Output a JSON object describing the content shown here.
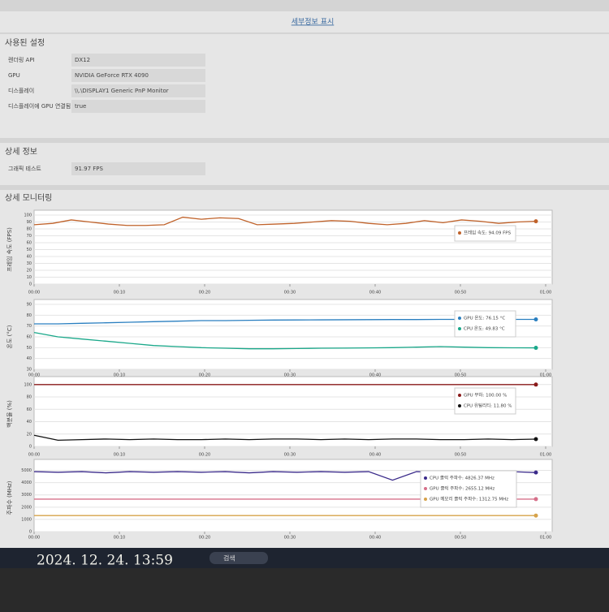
{
  "header": {
    "link": "세부정보 표시"
  },
  "settings": {
    "title": "사용된 설정",
    "rows": [
      [
        "렌더링 API",
        "DX12"
      ],
      [
        "GPU",
        "NVIDIA GeForce RTX 4090"
      ],
      [
        "디스플레이",
        "\\\\.\\DISPLAY1 Generic PnP Monitor"
      ],
      [
        "디스플레이에 GPU 연결됨",
        "true"
      ]
    ]
  },
  "details": {
    "title": "상세 정보",
    "rows": [
      [
        "그래픽 테스트",
        "91.97 FPS"
      ]
    ]
  },
  "monitoring": {
    "title": "상세 모니터링",
    "xticks": [
      "00:00",
      "00:10",
      "00:20",
      "00:30",
      "00:40",
      "00:50",
      "01:00"
    ],
    "charts": [
      {
        "y_label": "프레임 속도 (FPS)",
        "ylim": [
          0,
          100
        ],
        "yticks": [
          0,
          10,
          20,
          30,
          40,
          50,
          60,
          70,
          80,
          90,
          100
        ],
        "series": [
          {
            "label": "프레임 속도: 94.09 FPS",
            "color": "#c0622a",
            "values": [
              86,
              88,
              93,
              90,
              87,
              85,
              85,
              86,
              97,
              94,
              96,
              95,
              86,
              87,
              88,
              90,
              92,
              91,
              88,
              86,
              88,
              92,
              89,
              93,
              91,
              88,
              90,
              91
            ]
          }
        ]
      },
      {
        "y_label": "온도 (°C)",
        "ylim": [
          30,
          90
        ],
        "yticks": [
          30,
          40,
          50,
          60,
          70,
          80,
          90
        ],
        "series": [
          {
            "label": "GPU 온도: 76.15 °C",
            "color": "#2a7fc0",
            "values": [
              72,
              72,
              72.5,
              73,
              73.5,
              74,
              74.5,
              75,
              75,
              75.3,
              75.5,
              75.6,
              75.7,
              75.8,
              75.9,
              76,
              76,
              76.1,
              76.1,
              76.1,
              76.15,
              76.15
            ]
          },
          {
            "label": "CPU 온도: 49.83 °C",
            "color": "#1aa88a",
            "values": [
              64,
              60,
              58,
              56,
              54,
              52,
              51,
              50,
              49.5,
              49,
              49,
              49.2,
              49.5,
              49.6,
              49.8,
              50,
              50.5,
              51,
              50.5,
              50,
              49.9,
              49.83
            ]
          }
        ]
      },
      {
        "y_label": "백분율 (%)",
        "ylim": [
          0,
          105
        ],
        "yticks": [
          0,
          20,
          40,
          60,
          80,
          100
        ],
        "series": [
          {
            "label": "GPU 부하: 100.00 %",
            "color": "#8a1a1a",
            "values": [
              100,
              100,
              100,
              100,
              100,
              100,
              100,
              100,
              100,
              100,
              100,
              100,
              100,
              100,
              100,
              100,
              100,
              100,
              100,
              100
            ]
          },
          {
            "label": "CPU 유틸리티: 11.80 %",
            "color": "#111111",
            "values": [
              18,
              10,
              11,
              12,
              11,
              12,
              11,
              11,
              12,
              11,
              12,
              12,
              11,
              12,
              11,
              12,
              12,
              11,
              11,
              12,
              11,
              11.8
            ]
          }
        ]
      },
      {
        "y_label": "주파수 (MHz)",
        "ylim": [
          0,
          5500
        ],
        "yticks": [
          0,
          1000,
          2000,
          3000,
          4000,
          5000
        ],
        "series": [
          {
            "label": "CPU 클럭 주파수: 4826.37 MHz",
            "color": "#3a2a8a",
            "values": [
              4900,
              4850,
              4900,
              4800,
              4900,
              4850,
              4900,
              4850,
              4900,
              4800,
              4900,
              4850,
              4900,
              4850,
              4900,
              4200,
              4900,
              4850,
              4900,
              4850,
              4900,
              4826.37
            ]
          },
          {
            "label": "GPU 클럭 주파수: 2655.12 MHz",
            "color": "#d6708a",
            "values": [
              2655,
              2655,
              2655,
              2655,
              2655,
              2655,
              2655,
              2655,
              2655,
              2655,
              2655,
              2655,
              2655,
              2655,
              2655,
              2655,
              2655,
              2655,
              2655,
              2655,
              2655,
              2655.12
            ]
          },
          {
            "label": "GPU 메모리 클럭 주파수: 1312.75 MHz",
            "color": "#d6a24a",
            "values": [
              1312,
              1312,
              1312,
              1312,
              1312,
              1312,
              1312,
              1312,
              1312,
              1312,
              1312,
              1312,
              1312,
              1312,
              1312,
              1312,
              1312,
              1312,
              1312,
              1312,
              1312,
              1312.75
            ]
          }
        ]
      }
    ]
  },
  "taskbar": {
    "timestamp": "2024. 12. 24. 13:59",
    "search": "검색"
  }
}
